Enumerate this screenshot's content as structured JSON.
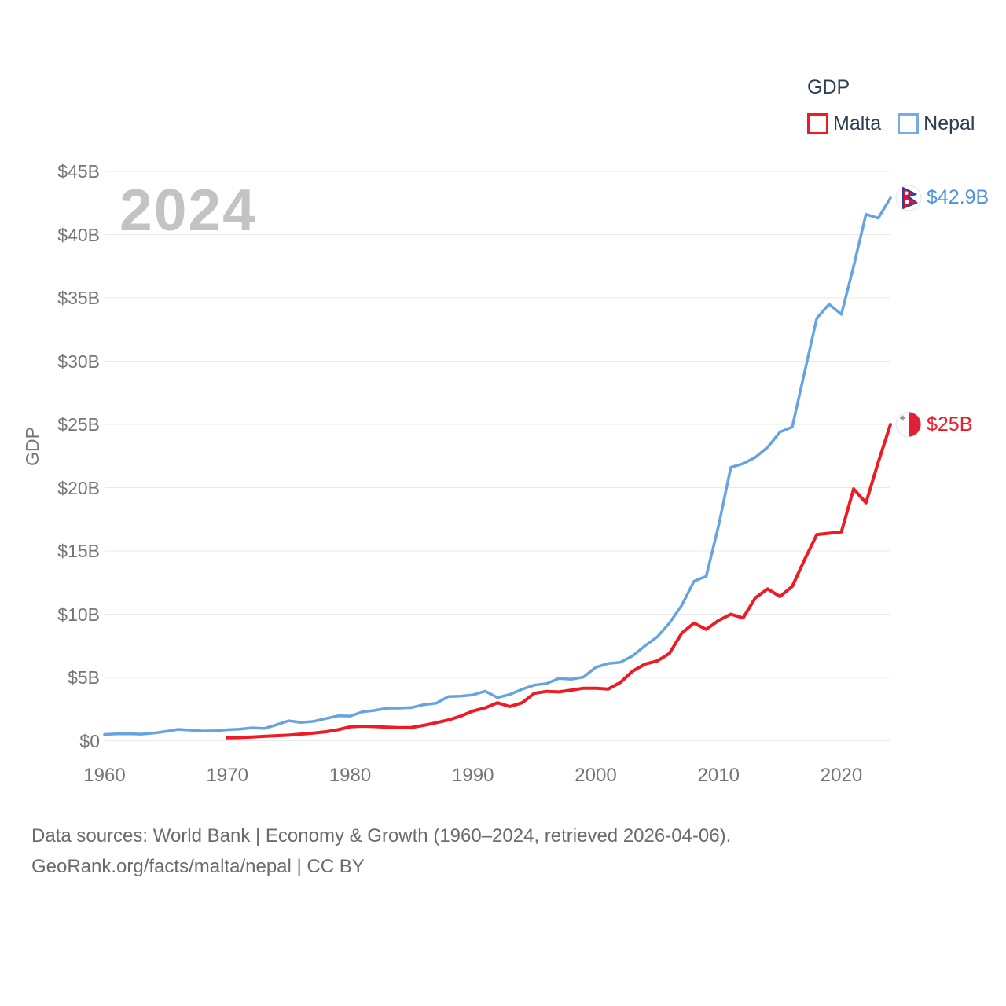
{
  "legend": {
    "title": "GDP",
    "items": [
      {
        "label": "Malta",
        "color": "#ee1b24"
      },
      {
        "label": "Nepal",
        "color": "#74ace8"
      }
    ]
  },
  "watermark": "2024",
  "footer": {
    "line1": "Data sources: World Bank | Economy & Growth (1960–2024, retrieved 2026-04-06).",
    "line2": "GeoRank.org/facts/malta/nepal | CC BY"
  },
  "chart_data": {
    "type": "line",
    "title": "GDP",
    "xlabel": "",
    "ylabel": "GDP",
    "grid": true,
    "legend_position": "top-right",
    "xlim": [
      1960,
      2024
    ],
    "ylim": [
      0,
      45
    ],
    "x_tick_values": [
      1960,
      1970,
      1980,
      1990,
      2000,
      2010,
      2020
    ],
    "x_tick_labels": [
      "1960",
      "1970",
      "1980",
      "1990",
      "2000",
      "2010",
      "2020"
    ],
    "y_ticks": [
      {
        "value": 0,
        "label": "$0"
      },
      {
        "value": 5,
        "label": "$5B"
      },
      {
        "value": 10,
        "label": "$10B"
      },
      {
        "value": 15,
        "label": "$15B"
      },
      {
        "value": 20,
        "label": "$20B"
      },
      {
        "value": 25,
        "label": "$25B"
      },
      {
        "value": 30,
        "label": "$30B"
      },
      {
        "value": 35,
        "label": "$35B"
      },
      {
        "value": 40,
        "label": "$40B"
      },
      {
        "value": 45,
        "label": "$45B"
      }
    ],
    "series": [
      {
        "name": "Malta",
        "color": "#ee1b24",
        "label_color": "#ee1b24",
        "end_label": "$25B",
        "start_year": 1970,
        "values": [
          0.23,
          0.25,
          0.29,
          0.35,
          0.4,
          0.44,
          0.52,
          0.61,
          0.71,
          0.87,
          1.1,
          1.15,
          1.12,
          1.07,
          1.03,
          1.05,
          1.22,
          1.42,
          1.64,
          1.95,
          2.35,
          2.6,
          3.0,
          2.7,
          3.0,
          3.75,
          3.9,
          3.86,
          4.0,
          4.15,
          4.15,
          4.08,
          4.6,
          5.5,
          6.05,
          6.3,
          6.9,
          8.5,
          9.3,
          8.8,
          9.5,
          10.0,
          9.7,
          11.3,
          12.0,
          11.4,
          12.2,
          14.3,
          16.3,
          16.4,
          16.5,
          19.9,
          18.8,
          22.0,
          25.0
        ]
      },
      {
        "name": "Nepal",
        "color": "#66a3e3",
        "label_color": "#4d94dc",
        "end_label": "$42.9B",
        "start_year": 1960,
        "values": [
          0.5,
          0.54,
          0.55,
          0.52,
          0.6,
          0.74,
          0.9,
          0.84,
          0.77,
          0.79,
          0.87,
          0.91,
          1.02,
          0.97,
          1.26,
          1.58,
          1.45,
          1.53,
          1.75,
          1.97,
          1.95,
          2.28,
          2.4,
          2.57,
          2.58,
          2.62,
          2.85,
          2.96,
          3.49,
          3.52,
          3.63,
          3.92,
          3.41,
          3.66,
          4.07,
          4.4,
          4.52,
          4.92,
          4.86,
          5.03,
          5.8,
          6.1,
          6.2,
          6.7,
          7.5,
          8.2,
          9.3,
          10.7,
          12.6,
          13.0,
          17.0,
          21.6,
          21.9,
          22.4,
          23.2,
          24.4,
          24.8,
          29.1,
          33.4,
          34.5,
          33.7,
          37.5,
          41.6,
          41.3,
          42.9
        ]
      }
    ]
  }
}
